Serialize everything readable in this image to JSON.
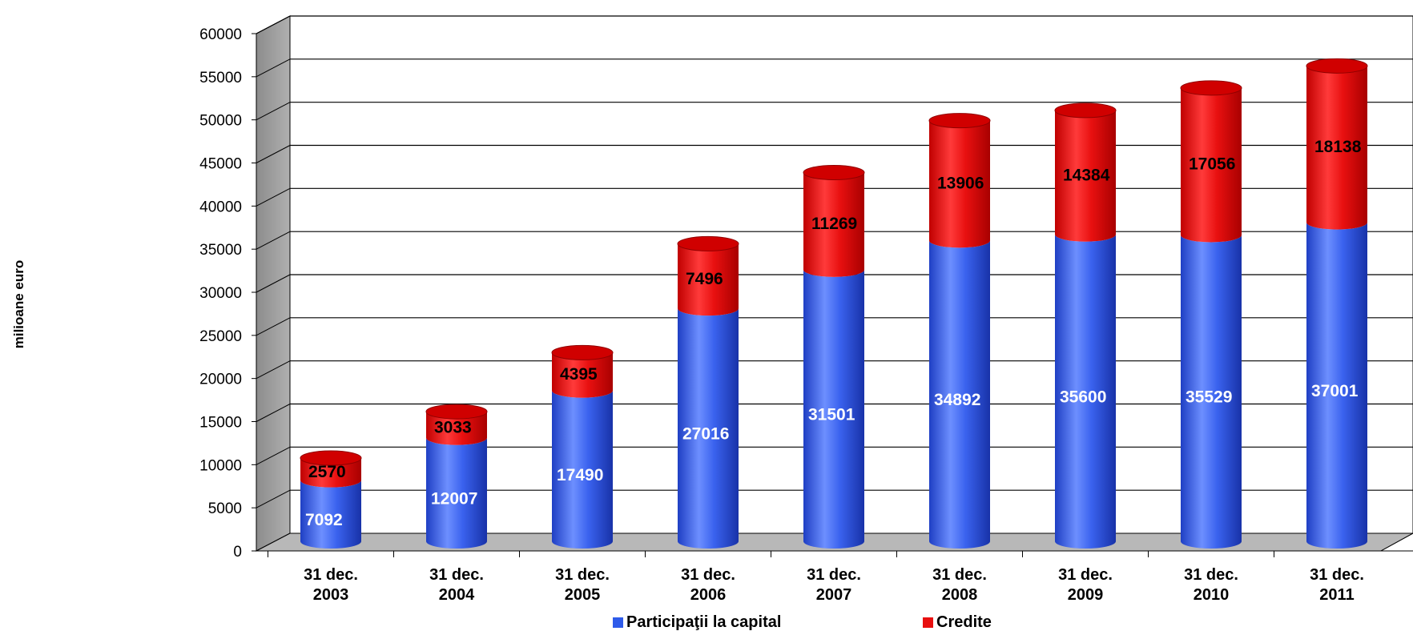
{
  "chart_data": {
    "type": "bar",
    "stacked": true,
    "style": "3d-cylinder",
    "categories": [
      "31 dec. 2003",
      "31 dec. 2004",
      "31 dec. 2005",
      "31 dec. 2006",
      "31 dec. 2007",
      "31 dec. 2008",
      "31 dec. 2009",
      "31 dec. 2010",
      "31 dec. 2011"
    ],
    "category_lines": [
      [
        "31 dec.",
        "2003"
      ],
      [
        "31 dec.",
        "2004"
      ],
      [
        "31 dec.",
        "2005"
      ],
      [
        "31 dec.",
        "2006"
      ],
      [
        "31 dec.",
        "2007"
      ],
      [
        "31 dec.",
        "2008"
      ],
      [
        "31 dec.",
        "2009"
      ],
      [
        "31 dec.",
        "2010"
      ],
      [
        "31 dec.",
        "2011"
      ]
    ],
    "series": [
      {
        "name": "Participaţii la capital",
        "color": "#2e5bea",
        "label_color": "#ffffff",
        "values": [
          7092,
          12007,
          17490,
          27016,
          31501,
          34892,
          35600,
          35529,
          37001
        ]
      },
      {
        "name": "Credite",
        "color": "#e81010",
        "label_color": "#000000",
        "values": [
          2570,
          3033,
          4395,
          7496,
          11269,
          13906,
          14384,
          17056,
          18138
        ]
      }
    ],
    "ylabel": "milioane euro",
    "ylim": [
      0,
      60000
    ],
    "yticks": [
      0,
      5000,
      10000,
      15000,
      20000,
      25000,
      30000,
      35000,
      40000,
      45000,
      50000,
      55000,
      60000
    ],
    "grid": true,
    "legend_position": "bottom"
  }
}
